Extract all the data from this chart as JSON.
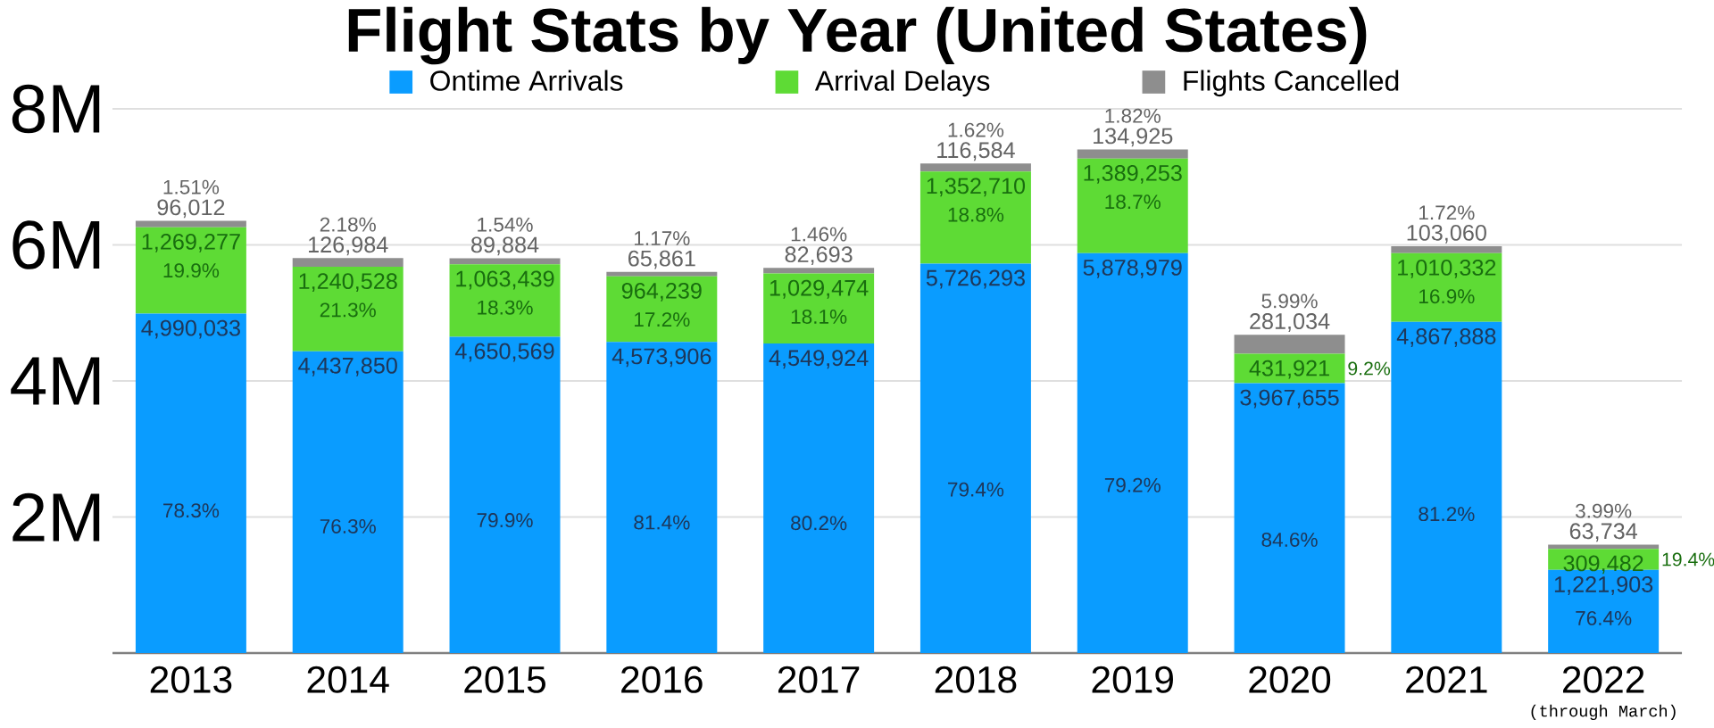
{
  "chart_data": {
    "type": "bar",
    "title": "Flight Stats by Year (United States)",
    "stacked": true,
    "categories": [
      "2013",
      "2014",
      "2015",
      "2016",
      "2017",
      "2018",
      "2019",
      "2020",
      "2021",
      "2022"
    ],
    "series": [
      {
        "name": "Ontime Arrivals",
        "color": "#0a9cff",
        "values": [
          4990033,
          4437850,
          4650569,
          4573906,
          4549924,
          5726293,
          5878979,
          3967655,
          4867888,
          1221903
        ],
        "value_labels": [
          "4,990,033",
          "4,437,850",
          "4,650,569",
          "4,573,906",
          "4,549,924",
          "5,726,293",
          "5,878,979",
          "3,967,655",
          "4,867,888",
          "1,221,903"
        ]
      },
      {
        "name": "Arrival Delays",
        "color": "#5edb35",
        "values": [
          1269277,
          1240528,
          1063439,
          964239,
          1029474,
          1352710,
          1389253,
          431921,
          1010332,
          309482
        ],
        "value_labels": [
          "1,269,277",
          "1,240,528",
          "1,063,439",
          "964,239",
          "1,029,474",
          "1,352,710",
          "1,389,253",
          "431,921",
          "1,010,332",
          "309,482"
        ]
      },
      {
        "name": "Flights Cancelled",
        "color": "#8e8e8e",
        "values": [
          96012,
          126984,
          89884,
          65861,
          82693,
          116584,
          134925,
          281034,
          103060,
          63734
        ],
        "value_labels": [
          "96,012",
          "126,984",
          "89,884",
          "65,861",
          "82,693",
          "116,584",
          "134,925",
          "281,034",
          "103,060",
          "63,734"
        ]
      }
    ],
    "ylim": [
      0,
      8000000
    ],
    "yticks": [
      {
        "value": 2000000,
        "label": "2M"
      },
      {
        "value": 4000000,
        "label": "4M"
      },
      {
        "value": 6000000,
        "label": "6M"
      },
      {
        "value": 8000000,
        "label": "8M"
      }
    ],
    "grid": "y",
    "legend": "top",
    "annotations": [
      "78.3%",
      "19.9%",
      "1.51%",
      "76.3%",
      "21.3%",
      "2.18%",
      "79.9%",
      "18.3%",
      "1.54%",
      "81.4%",
      "17.2%",
      "1.17%",
      "80.2%",
      "18.1%",
      "1.46%",
      "79.4%",
      "18.8%",
      "1.62%",
      "79.2%",
      "18.7%",
      "1.82%",
      "84.6%",
      "9.2%",
      "5.99%",
      "81.2%",
      "16.9%",
      "1.72%",
      "76.4%",
      "19.4%",
      "3.99%",
      "(through March)"
    ]
  }
}
